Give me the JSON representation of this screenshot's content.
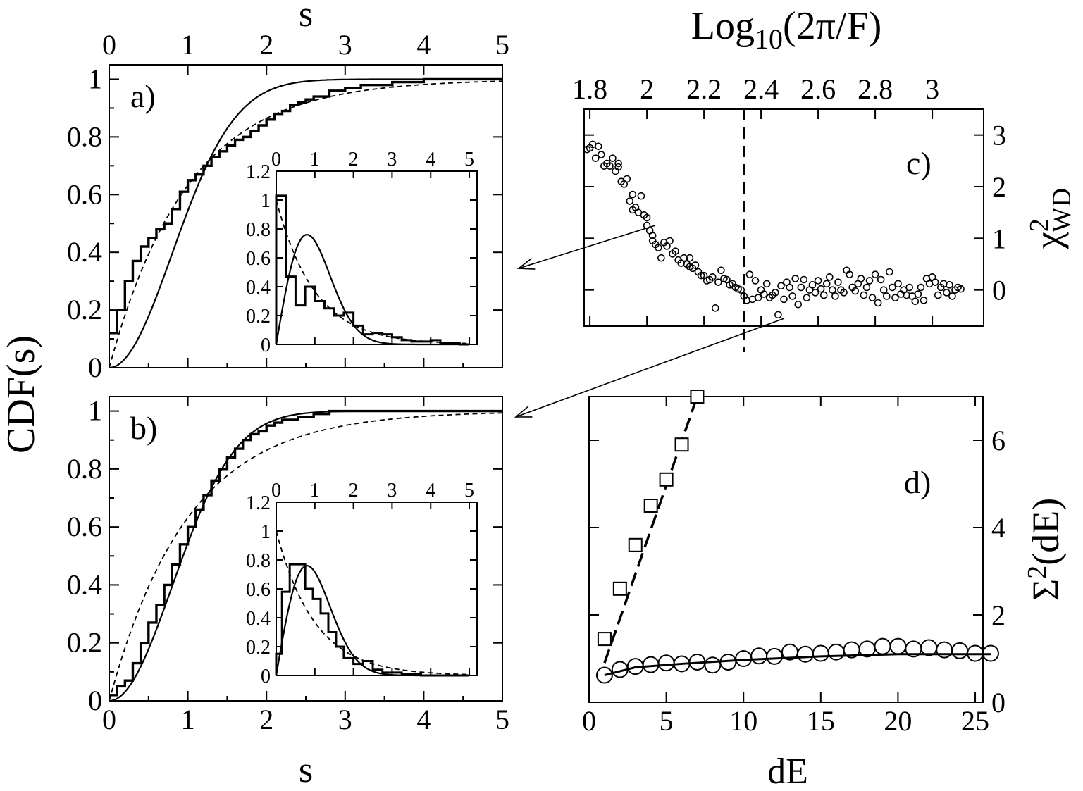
{
  "chart_data": [
    {
      "panel": "a",
      "type": "line",
      "panel_label": "a)",
      "top_xlabel": "s",
      "ylabel": "CDF(s)",
      "xlim": [
        0,
        5
      ],
      "ylim": [
        0,
        1.05
      ],
      "xticks": [
        "0",
        "1",
        "2",
        "3",
        "4",
        "5"
      ],
      "yticks": [
        "0",
        "0.2",
        "0.4",
        "0.6",
        "0.8",
        "1"
      ],
      "series": [
        {
          "style": "step-thick",
          "x": [
            0,
            0.1,
            0.2,
            0.3,
            0.4,
            0.5,
            0.6,
            0.7,
            0.8,
            0.9,
            1.0,
            1.1,
            1.2,
            1.3,
            1.4,
            1.5,
            1.6,
            1.7,
            1.8,
            1.9,
            2.0,
            2.1,
            2.2,
            2.3,
            2.4,
            2.5,
            2.6,
            2.8,
            3.0,
            3.2,
            3.6,
            4.0,
            5.0
          ],
          "y": [
            0.12,
            0.2,
            0.3,
            0.37,
            0.42,
            0.45,
            0.48,
            0.5,
            0.55,
            0.61,
            0.65,
            0.67,
            0.7,
            0.73,
            0.75,
            0.77,
            0.79,
            0.8,
            0.82,
            0.84,
            0.86,
            0.88,
            0.89,
            0.91,
            0.92,
            0.93,
            0.94,
            0.96,
            0.97,
            0.98,
            0.99,
            1.0,
            1.0
          ]
        },
        {
          "style": "solid",
          "function": "wigner"
        },
        {
          "style": "dashed",
          "function": "poisson"
        }
      ]
    },
    {
      "panel": "a-inset",
      "type": "line",
      "xlim": [
        0,
        5.2
      ],
      "ylim": [
        0,
        1.2
      ],
      "xticks": [
        "0",
        "1",
        "2",
        "3",
        "4",
        "5"
      ],
      "yticks": [
        "0",
        "0.2",
        "0.4",
        "0.6",
        "0.8",
        "1",
        "1.2"
      ],
      "bins": [
        0,
        0.25,
        0.5,
        0.75,
        1.0,
        1.25,
        1.5,
        1.75,
        2.0,
        2.25,
        2.5,
        2.75,
        3.0,
        3.25,
        3.5,
        3.75,
        4.0,
        4.25,
        4.5,
        4.75,
        5.0
      ],
      "hist": [
        1.03,
        0.47,
        0.27,
        0.4,
        0.3,
        0.25,
        0.2,
        0.22,
        0.13,
        0.07,
        0.08,
        0.07,
        0.05,
        0.03,
        0.02,
        0.02,
        0.03,
        0.01,
        0.01,
        0.0
      ]
    },
    {
      "panel": "b",
      "type": "line",
      "panel_label": "b)",
      "xlabel": "s",
      "xlim": [
        0,
        5
      ],
      "ylim": [
        0,
        1.05
      ],
      "xticks": [
        "0",
        "1",
        "2",
        "3",
        "4",
        "5"
      ],
      "yticks": [
        "0",
        "0.2",
        "0.4",
        "0.6",
        "0.8",
        "1"
      ],
      "series": [
        {
          "style": "step-thick",
          "x": [
            0,
            0.1,
            0.2,
            0.3,
            0.4,
            0.5,
            0.6,
            0.7,
            0.8,
            0.9,
            1.0,
            1.1,
            1.2,
            1.3,
            1.4,
            1.5,
            1.6,
            1.7,
            1.8,
            1.9,
            2.0,
            2.1,
            2.2,
            2.4,
            2.6,
            2.8,
            5.0
          ],
          "y": [
            0.02,
            0.05,
            0.07,
            0.13,
            0.2,
            0.27,
            0.33,
            0.4,
            0.47,
            0.54,
            0.6,
            0.66,
            0.71,
            0.76,
            0.8,
            0.84,
            0.87,
            0.9,
            0.92,
            0.93,
            0.95,
            0.96,
            0.97,
            0.98,
            0.99,
            1.0,
            1.0
          ]
        },
        {
          "style": "solid",
          "function": "wigner"
        },
        {
          "style": "dashed",
          "function": "poisson"
        }
      ]
    },
    {
      "panel": "b-inset",
      "type": "line",
      "xlim": [
        0,
        5.2
      ],
      "ylim": [
        0,
        1.2
      ],
      "xticks": [
        "0",
        "1",
        "2",
        "3",
        "4",
        "5"
      ],
      "yticks": [
        "0",
        "0.2",
        "0.4",
        "0.6",
        "0.8",
        "1",
        "1.2"
      ],
      "bins": [
        0,
        0.15,
        0.35,
        0.55,
        0.75,
        0.95,
        1.15,
        1.35,
        1.55,
        1.75,
        2.0,
        2.25,
        2.5,
        2.75,
        3.0,
        3.25,
        3.5,
        3.75,
        4.0,
        4.5,
        5.0
      ],
      "hist": [
        0.15,
        0.58,
        0.77,
        0.77,
        0.6,
        0.53,
        0.43,
        0.3,
        0.2,
        0.12,
        0.08,
        0.1,
        0.04,
        0.02,
        0.02,
        0.01,
        0.01,
        0.0,
        0.0,
        0.0
      ]
    },
    {
      "panel": "c",
      "type": "scatter",
      "panel_label": "c)",
      "top_xlabel_base": "Log",
      "top_xlabel_sub": "10",
      "top_xlabel_rest": "(2π/F)",
      "ylabel_base": "χ",
      "ylabel_sup": "2",
      "ylabel_sub": "WD",
      "xlim": [
        1.78,
        3.18
      ],
      "ylim": [
        -0.7,
        3.5
      ],
      "xticks": [
        "1.8",
        "2",
        "2.2",
        "2.4",
        "2.6",
        "2.8",
        "3"
      ],
      "yticks": [
        "0",
        "1",
        "2",
        "3"
      ],
      "vline_x": 2.34,
      "points": [
        [
          1.79,
          2.72
        ],
        [
          1.8,
          2.75
        ],
        [
          1.81,
          2.82
        ],
        [
          1.82,
          2.55
        ],
        [
          1.83,
          2.78
        ],
        [
          1.84,
          2.62
        ],
        [
          1.85,
          2.4
        ],
        [
          1.86,
          2.45
        ],
        [
          1.87,
          2.4
        ],
        [
          1.88,
          2.55
        ],
        [
          1.89,
          2.3
        ],
        [
          1.9,
          2.45
        ],
        [
          1.9,
          2.38
        ],
        [
          1.91,
          2.1
        ],
        [
          1.92,
          2.05
        ],
        [
          1.93,
          2.15
        ],
        [
          1.94,
          1.72
        ],
        [
          1.95,
          1.85
        ],
        [
          1.95,
          1.55
        ],
        [
          1.96,
          1.6
        ],
        [
          1.97,
          1.5
        ],
        [
          1.98,
          1.82
        ],
        [
          1.99,
          1.45
        ],
        [
          2.0,
          1.4
        ],
        [
          2.0,
          1.25
        ],
        [
          2.01,
          1.15
        ],
        [
          2.02,
          0.95
        ],
        [
          2.02,
          1.05
        ],
        [
          2.03,
          0.88
        ],
        [
          2.04,
          0.82
        ],
        [
          2.05,
          0.62
        ],
        [
          2.06,
          0.92
        ],
        [
          2.07,
          0.85
        ],
        [
          2.08,
          0.95
        ],
        [
          2.09,
          0.7
        ],
        [
          2.1,
          0.75
        ],
        [
          2.11,
          0.58
        ],
        [
          2.12,
          0.52
        ],
        [
          2.13,
          0.62
        ],
        [
          2.14,
          0.5
        ],
        [
          2.15,
          0.45
        ],
        [
          2.15,
          0.62
        ],
        [
          2.16,
          0.42
        ],
        [
          2.17,
          0.48
        ],
        [
          2.18,
          0.35
        ],
        [
          2.19,
          0.28
        ],
        [
          2.2,
          0.28
        ],
        [
          2.21,
          0.18
        ],
        [
          2.22,
          0.2
        ],
        [
          2.23,
          0.25
        ],
        [
          2.24,
          -0.35
        ],
        [
          2.25,
          0.15
        ],
        [
          2.26,
          0.38
        ],
        [
          2.27,
          0.22
        ],
        [
          2.28,
          0.2
        ],
        [
          2.29,
          0.1
        ],
        [
          2.3,
          0.12
        ],
        [
          2.31,
          0.05
        ],
        [
          2.32,
          0.02
        ],
        [
          2.33,
          0.0
        ],
        [
          2.34,
          -0.12
        ],
        [
          2.35,
          -0.2
        ],
        [
          2.36,
          0.3
        ],
        [
          2.37,
          -0.18
        ],
        [
          2.38,
          0.18
        ],
        [
          2.39,
          -0.15
        ],
        [
          2.4,
          0.0
        ],
        [
          2.41,
          -0.08
        ],
        [
          2.42,
          0.12
        ],
        [
          2.43,
          -0.15
        ],
        [
          2.44,
          -0.1
        ],
        [
          2.45,
          -0.05
        ],
        [
          2.46,
          -0.48
        ],
        [
          2.47,
          0.08
        ],
        [
          2.48,
          -0.18
        ],
        [
          2.49,
          0.15
        ],
        [
          2.5,
          0.05
        ],
        [
          2.51,
          -0.12
        ],
        [
          2.52,
          0.22
        ],
        [
          2.53,
          -0.28
        ],
        [
          2.54,
          0.05
        ],
        [
          2.55,
          0.2
        ],
        [
          2.56,
          -0.15
        ],
        [
          2.57,
          0.0
        ],
        [
          2.58,
          0.1
        ],
        [
          2.59,
          -0.05
        ],
        [
          2.6,
          0.18
        ],
        [
          2.61,
          0.02
        ],
        [
          2.62,
          -0.1
        ],
        [
          2.63,
          0.12
        ],
        [
          2.64,
          0.25
        ],
        [
          2.65,
          0.0
        ],
        [
          2.66,
          -0.12
        ],
        [
          2.67,
          0.15
        ],
        [
          2.68,
          0.0
        ],
        [
          2.69,
          -0.05
        ],
        [
          2.7,
          0.38
        ],
        [
          2.71,
          0.3
        ],
        [
          2.72,
          0.05
        ],
        [
          2.73,
          -0.02
        ],
        [
          2.74,
          0.12
        ],
        [
          2.75,
          0.22
        ],
        [
          2.76,
          -0.1
        ],
        [
          2.77,
          0.05
        ],
        [
          2.78,
          0.18
        ],
        [
          2.79,
          -0.15
        ],
        [
          2.8,
          0.3
        ],
        [
          2.81,
          -0.25
        ],
        [
          2.82,
          0.2
        ],
        [
          2.83,
          0.0
        ],
        [
          2.84,
          -0.12
        ],
        [
          2.85,
          0.35
        ],
        [
          2.86,
          0.05
        ],
        [
          2.87,
          -0.15
        ],
        [
          2.88,
          0.12
        ],
        [
          2.89,
          -0.08
        ],
        [
          2.9,
          0.0
        ],
        [
          2.91,
          -0.1
        ],
        [
          2.92,
          0.05
        ],
        [
          2.93,
          -0.12
        ],
        [
          2.94,
          -0.22
        ],
        [
          2.95,
          -0.08
        ],
        [
          2.96,
          0.05
        ],
        [
          2.97,
          -0.2
        ],
        [
          2.98,
          0.22
        ],
        [
          2.99,
          0.12
        ],
        [
          3.0,
          0.25
        ],
        [
          3.01,
          0.15
        ],
        [
          3.02,
          -0.1
        ],
        [
          3.03,
          0.05
        ],
        [
          3.04,
          0.12
        ],
        [
          3.05,
          -0.05
        ],
        [
          3.06,
          0.1
        ],
        [
          3.07,
          -0.12
        ],
        [
          3.08,
          0.0
        ],
        [
          3.09,
          0.05
        ],
        [
          3.1,
          0.02
        ]
      ]
    },
    {
      "panel": "d",
      "type": "scatter",
      "panel_label": "d)",
      "xlabel": "dE",
      "ylabel_base": "Σ",
      "ylabel_sup": "2",
      "ylabel_rest": "(dE)",
      "xlim": [
        0,
        25.5
      ],
      "ylim": [
        0,
        7
      ],
      "xticks": [
        "0",
        "5",
        "10",
        "15",
        "20",
        "25"
      ],
      "yticks": [
        "0",
        "2",
        "4",
        "6"
      ],
      "squares": [
        [
          1,
          1.45
        ],
        [
          2,
          2.6
        ],
        [
          3,
          3.6
        ],
        [
          4,
          4.5
        ],
        [
          5,
          5.1
        ],
        [
          6,
          5.9
        ],
        [
          7,
          7.0
        ]
      ],
      "square_fit": [
        [
          1,
          0.9
        ],
        [
          7,
          7.0
        ]
      ],
      "circles": [
        [
          1,
          0.62
        ],
        [
          2,
          0.75
        ],
        [
          3,
          0.82
        ],
        [
          4,
          0.86
        ],
        [
          5,
          0.9
        ],
        [
          6,
          0.88
        ],
        [
          7,
          0.92
        ],
        [
          8,
          0.85
        ],
        [
          9,
          0.92
        ],
        [
          10,
          1.0
        ],
        [
          11,
          1.06
        ],
        [
          12,
          1.05
        ],
        [
          13,
          1.15
        ],
        [
          14,
          1.1
        ],
        [
          15,
          1.12
        ],
        [
          16,
          1.15
        ],
        [
          17,
          1.2
        ],
        [
          18,
          1.22
        ],
        [
          19,
          1.28
        ],
        [
          20,
          1.28
        ],
        [
          21,
          1.22
        ],
        [
          22,
          1.25
        ],
        [
          23,
          1.2
        ],
        [
          24,
          1.18
        ],
        [
          25,
          1.12
        ],
        [
          26,
          1.12
        ]
      ],
      "circle_fit": [
        [
          1,
          0.62
        ],
        [
          3,
          0.8
        ],
        [
          6,
          0.88
        ],
        [
          10,
          0.97
        ],
        [
          15,
          1.05
        ],
        [
          20,
          1.1
        ],
        [
          26,
          1.1
        ]
      ]
    }
  ]
}
